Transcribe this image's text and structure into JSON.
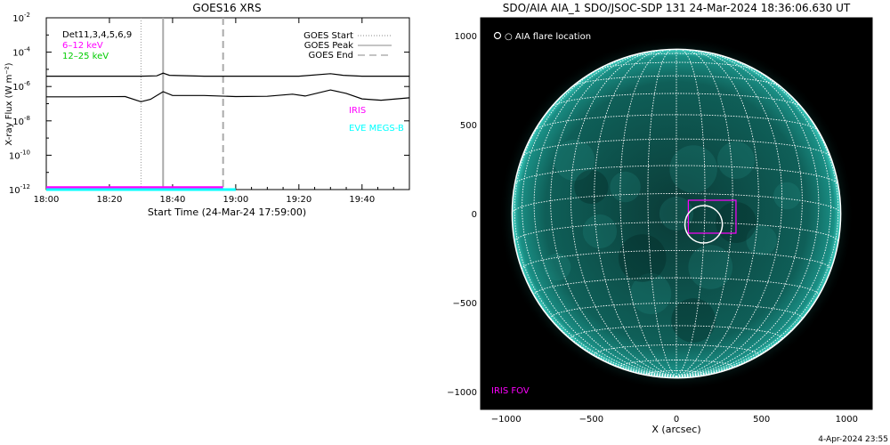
{
  "footer": {
    "timestamp": "4-Apr-2024 23:55"
  },
  "colors": {
    "detector": "#000000",
    "low_energy": "#ff00ff",
    "high_energy": "#00cc00",
    "iris": "#ff00ff",
    "eve": "#00ffff",
    "sun": "#0e8a80",
    "grid": "#ffffff"
  },
  "chart_data": [
    {
      "type": "line",
      "title": "GOES16 XRS",
      "xlabel": "Start Time (24-Mar-24 17:59:00)",
      "ylabel": "X-ray Flux (W m⁻²)",
      "y_scale": "log",
      "xlim": [
        "18:00",
        "19:55"
      ],
      "ylim": [
        1e-12,
        0.01
      ],
      "x_ticks": [
        "18:00",
        "18:20",
        "18:40",
        "19:00",
        "19:20",
        "19:40"
      ],
      "y_ticks": [
        {
          "base": "10",
          "exp": "-2"
        },
        {
          "base": "10",
          "exp": "-4"
        },
        {
          "base": "10",
          "exp": "-6"
        },
        {
          "base": "10",
          "exp": "-8"
        },
        {
          "base": "10",
          "exp": "-10"
        },
        {
          "base": "10",
          "exp": "-12"
        }
      ],
      "left_legend": [
        "Det11,3,4,5,6,9",
        "6–12 keV",
        "12–25 keV"
      ],
      "right_legend": [
        "GOES Start",
        "GOES Peak",
        "GOES End"
      ],
      "event_markers": {
        "goes_start": "18:30",
        "goes_peak": "18:37",
        "goes_end": "18:56"
      },
      "series": [
        {
          "name": "upper channel",
          "points": [
            [
              "18:00",
              4e-06
            ],
            [
              "18:10",
              4e-06
            ],
            [
              "18:30",
              4e-06
            ],
            [
              "18:35",
              4.2e-06
            ],
            [
              "18:37",
              6e-06
            ],
            [
              "18:39",
              4.5e-06
            ],
            [
              "18:50",
              4e-06
            ],
            [
              "19:00",
              4e-06
            ],
            [
              "19:15",
              4e-06
            ],
            [
              "19:20",
              4e-06
            ],
            [
              "19:30",
              5.6e-06
            ],
            [
              "19:34",
              4.5e-06
            ],
            [
              "19:40",
              4e-06
            ],
            [
              "19:55",
              4e-06
            ]
          ]
        },
        {
          "name": "lower channel",
          "points": [
            [
              "18:00",
              2.5e-07
            ],
            [
              "18:10",
              2.5e-07
            ],
            [
              "18:25",
              2.6e-07
            ],
            [
              "18:30",
              1.3e-07
            ],
            [
              "18:33",
              1.8e-07
            ],
            [
              "18:37",
              5e-07
            ],
            [
              "18:40",
              3e-07
            ],
            [
              "18:50",
              3e-07
            ],
            [
              "19:00",
              2.6e-07
            ],
            [
              "19:10",
              2.7e-07
            ],
            [
              "19:18",
              3.6e-07
            ],
            [
              "19:22",
              2.8e-07
            ],
            [
              "19:30",
              6.3e-07
            ],
            [
              "19:35",
              4e-07
            ],
            [
              "19:40",
              1.9e-07
            ],
            [
              "19:46",
              1.6e-07
            ],
            [
              "19:55",
              2.2e-07
            ]
          ]
        },
        {
          "name": "IRIS",
          "coverage": [
            "18:00",
            "18:56"
          ],
          "level": 1.3e-12
        },
        {
          "name": "EVE MEGS-B",
          "coverage": [
            "18:00",
            "19:00"
          ],
          "level": 1e-12
        }
      ],
      "annotations": [
        "IRIS",
        "EVE MEGS-B"
      ]
    },
    {
      "type": "image",
      "title": "SDO/AIA AIA_1 SDO/JSOC-SDP 131 24-Mar-2024 18:36:06.630 UT",
      "xlabel": "X (arcsec)",
      "xlim": [
        -1150,
        1150
      ],
      "ylim": [
        -1100,
        1100
      ],
      "x_ticks": [
        -1000,
        -500,
        0,
        500,
        1000
      ],
      "y_ticks": [
        1000,
        500,
        0,
        -500,
        -1000
      ],
      "solar_radius_arcsec": 965,
      "legend": "○ AIA flare location",
      "flare_location": {
        "x": 160,
        "y": -60,
        "radius": 110
      },
      "iris_fov": {
        "x0": 70,
        "x1": 350,
        "y0": -110,
        "y1": 75,
        "label": "IRIS FOV"
      },
      "grid_spacing_deg": 10
    }
  ]
}
